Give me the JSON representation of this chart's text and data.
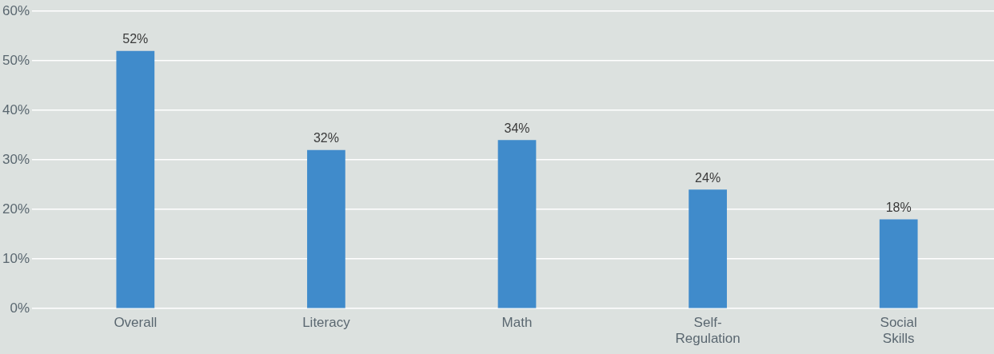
{
  "chart_data": {
    "type": "bar",
    "categories": [
      "Overall",
      "Literacy",
      "Math",
      "Self-Regulation",
      "Social Skills"
    ],
    "values": [
      52,
      32,
      34,
      24,
      18
    ],
    "color": "#408bcb",
    "ylim": [
      0,
      60
    ],
    "yticks": [
      {
        "value": 0,
        "label": "0%"
      },
      {
        "value": 10,
        "label": "10%"
      },
      {
        "value": 20,
        "label": "20%"
      },
      {
        "value": 30,
        "label": "30%"
      },
      {
        "value": 40,
        "label": "40%"
      },
      {
        "value": 50,
        "label": "50%"
      },
      {
        "value": 60,
        "label": "60%"
      }
    ],
    "value_labels": [
      "52%",
      "32%",
      "34%",
      "24%",
      "18%"
    ],
    "grid": "y"
  }
}
